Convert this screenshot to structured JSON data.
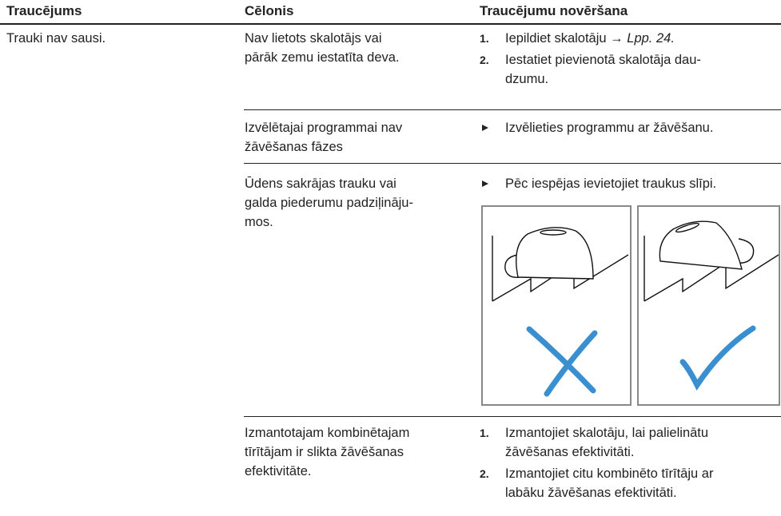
{
  "table": {
    "header": [
      "Traucējums",
      "Cēlonis",
      "Traucējumu novēršana"
    ],
    "problem": "Trauki nav sausi.",
    "rows": [
      {
        "cause": [
          "Nav lietots skalotājs vai",
          "pārāk zemu iestatīta deva."
        ],
        "remedy": [
          {
            "number": "1.",
            "lines": [
              "Iepildiet skalotāju →"
            ],
            "link": "Lpp. 24."
          },
          {
            "number": "2.",
            "lines": [
              "Iestatiet pievienotā skalotāja dau-",
              "dzumu."
            ]
          }
        ]
      },
      {
        "cause": [
          "Izvēlētajai programmai nav",
          "žāvēšanas fāzes"
        ],
        "remedy": [
          {
            "lines": [
              "Izvēlieties programmu ar žāvēšanu."
            ]
          }
        ]
      },
      {
        "cause": [
          "Ūdens sakrājas trauku vai",
          "galda piederumu padziļināju-",
          "mos."
        ],
        "remedy": [
          {
            "lines": [
              "Pēc iespējas ievietojiet traukus slīpi."
            ]
          }
        ]
      },
      {
        "cause": [
          "Izmantotajam kombinētajam",
          "tīrītājam ir slikta žāvēšanas",
          "efektivitāte."
        ],
        "remedy": [
          {
            "number": "1.",
            "lines": [
              "Izmantojiet skalotāju, lai palielinātu",
              "žāvēšanas efektivitāti."
            ]
          },
          {
            "number": "2.",
            "lines": [
              "Izmantojiet citu kombinēto tīrītāju ar",
              "labāku žāvēšanas efektivitāti."
            ]
          }
        ]
      }
    ]
  }
}
